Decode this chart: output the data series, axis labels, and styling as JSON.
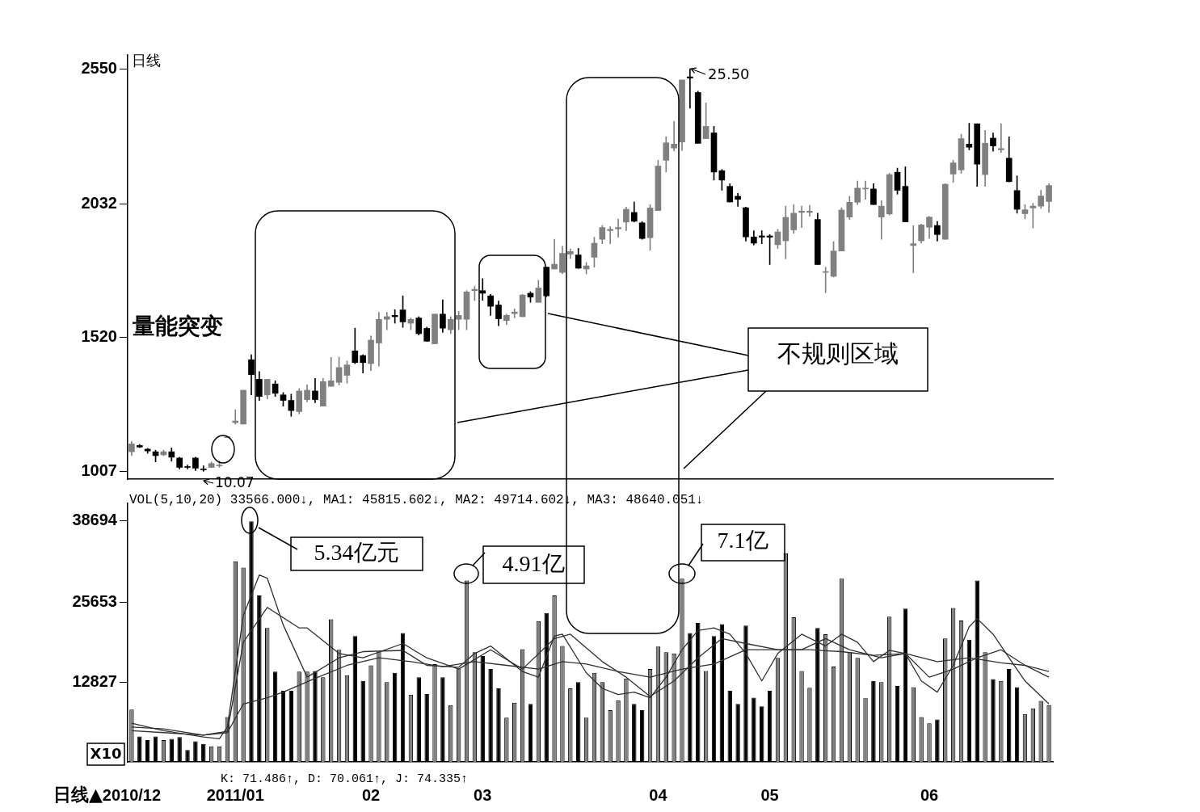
{
  "chart_data": [
    {
      "type": "candlestick",
      "title": "日线",
      "categories": [
        "2010/12",
        null,
        null,
        null,
        null,
        null,
        null,
        null,
        null,
        null,
        null,
        null,
        null,
        "2011/01",
        null,
        null,
        null,
        null,
        null,
        null,
        null,
        null,
        null,
        null,
        null,
        null,
        null,
        null,
        null,
        null,
        "02",
        null,
        null,
        null,
        null,
        null,
        null,
        null,
        null,
        null,
        null,
        null,
        null,
        null,
        "03",
        null,
        null,
        null,
        null,
        null,
        null,
        null,
        null,
        null,
        null,
        null,
        null,
        null,
        null,
        null,
        null,
        null,
        null,
        null,
        null,
        null,
        "04",
        null,
        null,
        null,
        null,
        null,
        null,
        null,
        null,
        null,
        null,
        null,
        null,
        null,
        "05",
        null,
        null,
        null,
        null,
        null,
        null,
        null,
        null,
        null,
        null,
        null,
        null,
        null,
        null,
        null,
        null,
        null,
        null,
        null,
        "06",
        null,
        null,
        null,
        null,
        null,
        null,
        null,
        null,
        null,
        null,
        null,
        null,
        null,
        null,
        null
      ],
      "ohlc": [
        [
          1082,
          1122,
          1067,
          1112
        ],
        [
          1106,
          1110,
          1098,
          1100
        ],
        [
          1092,
          1095,
          1076,
          1085
        ],
        [
          1082,
          1088,
          1043,
          1067
        ],
        [
          1070,
          1088,
          1067,
          1082
        ],
        [
          1082,
          1097,
          1046,
          1061
        ],
        [
          1058,
          1061,
          1016,
          1022
        ],
        [
          1025,
          1031,
          1016,
          1022
        ],
        [
          1058,
          1061,
          1010,
          1019
        ],
        [
          1016,
          1028,
          1007,
          1013
        ],
        [
          1022,
          1043,
          1022,
          1037
        ],
        [
          1028,
          1046,
          1022,
          1030
        ],
        [
          1136,
          1138,
          1136,
          1138
        ],
        [
          1194,
          1243,
          1188,
          1200
        ],
        [
          1188,
          1318,
          1188,
          1318
        ],
        [
          1435,
          1454,
          1300,
          1378
        ],
        [
          1360,
          1390,
          1279,
          1294
        ],
        [
          1300,
          1360,
          1285,
          1360
        ],
        [
          1342,
          1354,
          1294,
          1306
        ],
        [
          1300,
          1309,
          1257,
          1279
        ],
        [
          1279,
          1303,
          1218,
          1240
        ],
        [
          1236,
          1324,
          1227,
          1315
        ],
        [
          1282,
          1339,
          1273,
          1318
        ],
        [
          1315,
          1363,
          1270,
          1282
        ],
        [
          1257,
          1363,
          1257,
          1351
        ],
        [
          1333,
          1444,
          1333,
          1354
        ],
        [
          1348,
          1445,
          1338,
          1405
        ],
        [
          1375,
          1430,
          1345,
          1415
        ],
        [
          1469,
          1556,
          1420,
          1424
        ],
        [
          1451,
          1454,
          1384,
          1424
        ],
        [
          1420,
          1526,
          1393,
          1510
        ],
        [
          1499,
          1617,
          1410,
          1590
        ],
        [
          1590,
          1617,
          1550,
          1600
        ],
        [
          1605,
          1627,
          1575,
          1600
        ],
        [
          1626,
          1680,
          1559,
          1580
        ],
        [
          1575,
          1595,
          1550,
          1590
        ],
        [
          1595,
          1600,
          1530,
          1535
        ],
        [
          1555,
          1560,
          1505,
          1506
        ],
        [
          1496,
          1610,
          1496,
          1610
        ],
        [
          1610,
          1665,
          1540,
          1556
        ],
        [
          1550,
          1600,
          1535,
          1590
        ],
        [
          1590,
          1620,
          1550,
          1605
        ],
        [
          1590,
          1700,
          1550,
          1695
        ],
        [
          1700,
          1716,
          1662,
          1705
        ],
        [
          1700,
          1746,
          1663,
          1690
        ],
        [
          1680,
          1686,
          1605,
          1640
        ],
        [
          1645,
          1660,
          1565,
          1592
        ],
        [
          1585,
          1610,
          1570,
          1605
        ],
        [
          1612,
          1630,
          1596,
          1618
        ],
        [
          1600,
          1686,
          1600,
          1683
        ],
        [
          1690,
          1696,
          1655,
          1675
        ],
        [
          1655,
          1740,
          1655,
          1710
        ],
        [
          1790,
          1790,
          1677,
          1680
        ],
        [
          1783,
          1897,
          1783,
          1801
        ],
        [
          1770,
          1870,
          1765,
          1843
        ],
        [
          1840,
          1860,
          1823,
          1850
        ],
        [
          1837,
          1862,
          1785,
          1786
        ],
        [
          1783,
          1808,
          1764,
          1795
        ],
        [
          1828,
          1905,
          1790,
          1882
        ],
        [
          1897,
          1950,
          1880,
          1942
        ],
        [
          1930,
          1945,
          1880,
          1935
        ],
        [
          1937,
          1975,
          1905,
          1942
        ],
        [
          1963,
          2020,
          1930,
          2012
        ],
        [
          2000,
          2040,
          1963,
          1966
        ],
        [
          1960,
          1965,
          1897,
          1900
        ],
        [
          1903,
          2030,
          1855,
          2017
        ],
        [
          2007,
          2200,
          2007,
          2178
        ],
        [
          2200,
          2290,
          2155,
          2267
        ],
        [
          2247,
          2350,
          2236,
          2262
        ],
        [
          2270,
          2508,
          2237,
          2508
        ],
        [
          2520,
          2550,
          2400,
          2515
        ],
        [
          2460,
          2465,
          2265,
          2265
        ],
        [
          2283,
          2420,
          2283,
          2330
        ],
        [
          2305,
          2330,
          2124,
          2155
        ],
        [
          2160,
          2165,
          2085,
          2124
        ],
        [
          2100,
          2110,
          2040,
          2040
        ],
        [
          2062,
          2073,
          2023,
          2050
        ],
        [
          2018,
          2020,
          1890,
          1906
        ],
        [
          1906,
          1930,
          1875,
          1882
        ],
        [
          1910,
          1930,
          1880,
          1905
        ],
        [
          1910,
          1915,
          1800,
          1905
        ],
        [
          1876,
          1935,
          1862,
          1925
        ],
        [
          1891,
          2024,
          1822,
          1981
        ],
        [
          1933,
          2030,
          1920,
          1997
        ],
        [
          2000,
          2024,
          1942,
          2005
        ],
        [
          2000,
          2027,
          1985,
          2005
        ],
        [
          1973,
          1997,
          1800,
          1800
        ],
        [
          1770,
          1790,
          1692,
          1772
        ],
        [
          1755,
          1888,
          1752,
          1852
        ],
        [
          1852,
          2018,
          1852,
          2009
        ],
        [
          1982,
          2062,
          1973,
          2039
        ],
        [
          2039,
          2120,
          2030,
          2093
        ],
        [
          2090,
          2120,
          2050,
          2093
        ],
        [
          2090,
          2110,
          2030,
          2030
        ],
        [
          1982,
          2045,
          1897,
          2024
        ],
        [
          1994,
          2150,
          1990,
          2145
        ],
        [
          2154,
          2170,
          2070,
          2085
        ],
        [
          2100,
          2175,
          1964,
          1964
        ],
        [
          1873,
          1949,
          1768,
          1880
        ],
        [
          1891,
          1955,
          1882,
          1952
        ],
        [
          1943,
          1985,
          1900,
          1982
        ],
        [
          1950,
          1965,
          1890,
          1915
        ],
        [
          1897,
          2110,
          1897,
          2108
        ],
        [
          2147,
          2200,
          2115,
          2190
        ],
        [
          2163,
          2300,
          2150,
          2283
        ],
        [
          2262,
          2342,
          2240,
          2250
        ],
        [
          2340,
          2340,
          2100,
          2185
        ],
        [
          2145,
          2315,
          2100,
          2265
        ],
        [
          2285,
          2305,
          2235,
          2255
        ],
        [
          2240,
          2340,
          2230,
          2245
        ],
        [
          2208,
          2290,
          2117,
          2118
        ],
        [
          2084,
          2140,
          1997,
          2012
        ],
        [
          1995,
          2030,
          1975,
          2010
        ],
        [
          2017,
          2035,
          1940,
          2024
        ],
        [
          2024,
          2085,
          2015,
          2063
        ],
        [
          2042,
          2110,
          2000,
          2103
        ]
      ],
      "colors": [
        "#808080",
        "#000000",
        "#000000",
        "#000000",
        "#808080",
        "#000000",
        "#000000",
        "#000000",
        "#000000",
        "#000000",
        "#808080",
        "#808080",
        "#808080",
        "#808080",
        "#808080",
        "#000000",
        "#000000",
        "#808080",
        "#000000",
        "#000000",
        "#000000",
        "#808080",
        "#808080",
        "#000000",
        "#808080",
        "#808080",
        "#808080",
        "#808080",
        "#000000",
        "#000000",
        "#808080",
        "#808080",
        "#808080",
        "#000000",
        "#000000",
        "#808080",
        "#000000",
        "#000000",
        "#808080",
        "#000000",
        "#808080",
        "#808080",
        "#808080",
        "#808080",
        "#000000",
        "#000000",
        "#000000",
        "#808080",
        "#808080",
        "#808080",
        "#000000",
        "#808080",
        "#000000",
        "#808080",
        "#808080",
        "#808080",
        "#000000",
        "#808080",
        "#808080",
        "#808080",
        "#808080",
        "#808080",
        "#808080",
        "#000000",
        "#000000",
        "#808080",
        "#808080",
        "#808080",
        "#808080",
        "#808080",
        "#000000",
        "#000000",
        "#808080",
        "#000000",
        "#000000",
        "#000000",
        "#000000",
        "#000000",
        "#000000",
        "#000000",
        "#000000",
        "#808080",
        "#808080",
        "#808080",
        "#808080",
        "#808080",
        "#000000",
        "#808080",
        "#808080",
        "#808080",
        "#808080",
        "#808080",
        "#808080",
        "#000000",
        "#808080",
        "#808080",
        "#000000",
        "#000000",
        "#808080",
        "#808080",
        "#808080",
        "#000000",
        "#808080",
        "#808080",
        "#808080",
        "#000000",
        "#000000",
        "#808080",
        "#000000",
        "#808080",
        "#000000",
        "#000000",
        "#808080",
        "#808080",
        "#808080",
        "#808080"
      ],
      "ylim": [
        977,
        2604
      ],
      "yticks": [
        1007,
        1520,
        2032,
        2550
      ],
      "tick_labels": "y",
      "annotations": [
        "量能突变",
        "不规则区域",
        "25.50",
        "10.07"
      ]
    },
    {
      "type": "bar",
      "categories": [
        "2010/12",
        null,
        null,
        null,
        null,
        null,
        null,
        null,
        null,
        null,
        null,
        null,
        null,
        "2011/01",
        null,
        null,
        null,
        null,
        null,
        null,
        null,
        null,
        null,
        null,
        null,
        null,
        null,
        null,
        null,
        null,
        "02",
        null,
        null,
        null,
        null,
        null,
        null,
        null,
        null,
        null,
        null,
        null,
        null,
        null,
        "03",
        null,
        null,
        null,
        null,
        null,
        null,
        null,
        null,
        null,
        null,
        null,
        null,
        null,
        null,
        null,
        null,
        null,
        null,
        null,
        null,
        null,
        "04",
        null,
        null,
        null,
        null,
        null,
        null,
        null,
        null,
        null,
        null,
        null,
        null,
        null,
        "05",
        null,
        null,
        null,
        null,
        null,
        null,
        null,
        null,
        null,
        null,
        null,
        null,
        null,
        null,
        null,
        null,
        null,
        null,
        null,
        "06",
        null,
        null,
        null,
        null,
        null,
        null,
        null,
        null,
        null,
        null,
        null,
        null,
        null,
        null,
        null
      ],
      "series": [
        {
          "type": "bar",
          "values": [
            8400,
            4100,
            3500,
            4100,
            3500,
            3700,
            4000,
            1900,
            3300,
            2900,
            2500,
            2500,
            7200,
            32200,
            31200,
            38600,
            26700,
            21500,
            14500,
            11400,
            11400,
            14500,
            14500,
            14600,
            13600,
            22900,
            18000,
            13900,
            20200,
            13000,
            15500,
            17700,
            12800,
            14300,
            20700,
            10800,
            13600,
            10900,
            15700,
            13600,
            9100,
            15000,
            29100,
            17600,
            17000,
            14900,
            11800,
            7100,
            9500,
            18100,
            9300,
            22600,
            23900,
            26700,
            18600,
            11800,
            12800,
            7100,
            14300,
            12800,
            8300,
            9900,
            13400,
            9300,
            8300,
            14900,
            18500,
            17600,
            17400,
            29400,
            20700,
            22300,
            14600,
            20200,
            22100,
            11400,
            9300,
            21900,
            10300,
            8900,
            11400,
            16700,
            33500,
            23200,
            14600,
            11900,
            21500,
            20500,
            15300,
            29400,
            17600,
            16700,
            10200,
            13000,
            12800,
            23300,
            12200,
            24600,
            12000,
            7200,
            6200,
            6800,
            19800,
            24700,
            22700,
            19600,
            29100,
            17600,
            13300,
            13000,
            14900,
            12000,
            7700,
            8600,
            9800,
            9100
          ],
          "colors": [
            "#808080",
            "#000000",
            "#000000",
            "#000000",
            "#808080",
            "#000000",
            "#000000",
            "#000000",
            "#000000",
            "#000000",
            "#808080",
            "#808080",
            "#808080",
            "#808080",
            "#808080",
            "#000000",
            "#000000",
            "#808080",
            "#000000",
            "#000000",
            "#000000",
            "#808080",
            "#808080",
            "#000000",
            "#808080",
            "#808080",
            "#808080",
            "#808080",
            "#000000",
            "#000000",
            "#808080",
            "#808080",
            "#808080",
            "#000000",
            "#000000",
            "#808080",
            "#000000",
            "#000000",
            "#808080",
            "#000000",
            "#808080",
            "#808080",
            "#808080",
            "#808080",
            "#000000",
            "#000000",
            "#000000",
            "#808080",
            "#808080",
            "#808080",
            "#000000",
            "#808080",
            "#000000",
            "#808080",
            "#808080",
            "#808080",
            "#000000",
            "#808080",
            "#808080",
            "#808080",
            "#808080",
            "#808080",
            "#808080",
            "#000000",
            "#000000",
            "#808080",
            "#808080",
            "#808080",
            "#808080",
            "#808080",
            "#000000",
            "#000000",
            "#808080",
            "#000000",
            "#000000",
            "#000000",
            "#000000",
            "#000000",
            "#000000",
            "#000000",
            "#000000",
            "#808080",
            "#808080",
            "#808080",
            "#808080",
            "#808080",
            "#000000",
            "#808080",
            "#808080",
            "#808080",
            "#808080",
            "#808080",
            "#808080",
            "#000000",
            "#808080",
            "#808080",
            "#000000",
            "#000000",
            "#808080",
            "#808080",
            "#808080",
            "#000000",
            "#808080",
            "#808080",
            "#808080",
            "#000000",
            "#000000",
            "#808080",
            "#000000",
            "#808080",
            "#000000",
            "#000000",
            "#808080",
            "#808080",
            "#808080",
            "#808080"
          ]
        },
        {
          "type": "line",
          "color": "#303030",
          "values": [
            6200,
            null,
            null,
            null,
            5000,
            null,
            null,
            null,
            null,
            4000,
            null,
            3700,
            5600,
            null,
            23500,
            null,
            30000,
            29500,
            null,
            22000,
            null,
            null,
            13600,
            null,
            null,
            null,
            16700,
            null,
            null,
            17700,
            null,
            null,
            null,
            null,
            17900,
            null,
            null,
            15500,
            null,
            null,
            null,
            15200,
            null,
            17400,
            null,
            18600,
            null,
            null,
            null,
            14500,
            null,
            13600,
            null,
            20200,
            20500,
            null,
            null,
            14300,
            null,
            11800,
            null,
            10800,
            null,
            11200,
            null,
            10300,
            null,
            13600,
            null,
            18000,
            null,
            21100,
            null,
            21500,
            null,
            20500,
            null,
            17400,
            null,
            13000,
            null,
            17400,
            null,
            null,
            20500,
            null,
            null,
            18600,
            null,
            20500,
            null,
            19200,
            null,
            16100,
            null,
            17900,
            null,
            17400,
            null,
            13000,
            null,
            11200,
            null,
            15500,
            null,
            21700,
            23000,
            null,
            20500,
            null,
            16700,
            null,
            13000,
            null,
            null,
            9300
          ]
        },
        {
          "type": "line",
          "color": "#303030",
          "values": [
            5600,
            null,
            null,
            null,
            5300,
            null,
            null,
            null,
            null,
            4300,
            null,
            null,
            4900,
            null,
            19200,
            null,
            null,
            24800,
            null,
            null,
            null,
            21500,
            21500,
            null,
            null,
            null,
            17400,
            null,
            null,
            16700,
            null,
            null,
            null,
            null,
            19000,
            null,
            null,
            16700,
            null,
            null,
            null,
            14900,
            null,
            null,
            null,
            18000,
            null,
            null,
            null,
            14900,
            null,
            null,
            null,
            19800,
            null,
            20500,
            null,
            null,
            null,
            16100,
            null,
            null,
            13600,
            null,
            null,
            10500,
            null,
            null,
            13000,
            null,
            null,
            16700,
            null,
            null,
            19800,
            null,
            null,
            19000,
            null,
            null,
            null,
            18000,
            null,
            null,
            18000,
            null,
            null,
            19800,
            null,
            null,
            18000,
            null,
            null,
            null,
            16700,
            null,
            null,
            17400,
            null,
            null,
            13600,
            null,
            null,
            14900,
            null,
            null,
            16700,
            null,
            null,
            18000,
            null,
            null,
            15500,
            null,
            null,
            13600
          ]
        },
        {
          "type": "line",
          "color": "#303030",
          "values": [
            5000,
            null,
            null,
            null,
            4700,
            null,
            null,
            null,
            null,
            4300,
            null,
            null,
            4700,
            null,
            9300,
            null,
            null,
            10300,
            null,
            11200,
            null,
            null,
            null,
            13400,
            null,
            null,
            null,
            15500,
            null,
            null,
            null,
            16700,
            null,
            null,
            null,
            16100,
            null,
            null,
            null,
            15300,
            null,
            null,
            null,
            16100,
            null,
            null,
            null,
            15500,
            null,
            null,
            null,
            14900,
            null,
            null,
            16100,
            null,
            null,
            15700,
            null,
            null,
            null,
            14500,
            null,
            null,
            null,
            13600,
            null,
            null,
            null,
            14900,
            null,
            null,
            null,
            15700,
            null,
            null,
            null,
            18000,
            null,
            null,
            null,
            18000,
            null,
            null,
            null,
            18000,
            null,
            null,
            null,
            17700,
            null,
            null,
            null,
            17100,
            null,
            null,
            null,
            17400,
            null,
            null,
            null,
            16100,
            null,
            null,
            null,
            16700,
            null,
            null,
            null,
            15900,
            null,
            null,
            15500,
            null,
            null,
            14500
          ]
        }
      ],
      "ylim": [
        0,
        41500
      ],
      "yticks": [
        12827,
        25653,
        38694
      ],
      "annotations": [
        "VOL(5,10,20) 33566.000↓, MA1: 45815.602↓, MA2: 49714.602↓, MA3: 48640.051↓",
        "5.34亿元",
        "4.91亿",
        "7.1亿",
        "X10",
        "K: 71.486↑, D: 70.061↑, J: 74.335↑",
        "日线▲"
      ]
    }
  ]
}
